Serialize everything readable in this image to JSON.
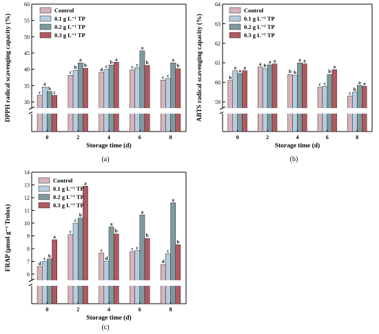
{
  "colors": [
    "#D6B4B9",
    "#B6CDE0",
    "#7F9A9E",
    "#B05A60"
  ],
  "legend": [
    "Control",
    "0.1 g L⁻¹ TP",
    "0.2 g L⁻¹ TP",
    "0.3 g L⁻¹ TP"
  ],
  "chart_data": [
    {
      "type": "bar",
      "panel_label": "(a)",
      "ylabel": "DPPH radical scavenging capacity (%)",
      "xlabel": "Storage time (d)",
      "categories": [
        "0",
        "2",
        "4",
        "6",
        "8"
      ],
      "ylim": [
        25,
        60
      ],
      "yticks": [
        30,
        35,
        40,
        45,
        50,
        55,
        60
      ],
      "axis_break": true,
      "series": [
        {
          "name": "Control",
          "values": [
            32.0,
            38.2,
            39.0,
            39.8,
            36.7
          ],
          "labels": [
            "c",
            "c",
            "d",
            "c",
            "c"
          ]
        },
        {
          "name": "0.1 g L⁻¹ TP",
          "values": [
            34.6,
            39.7,
            40.0,
            40.5,
            37.2
          ],
          "labels": [
            "a",
            "b",
            "c",
            "c",
            "c"
          ]
        },
        {
          "name": "0.2 g L⁻¹ TP",
          "values": [
            33.2,
            42.0,
            41.3,
            45.7,
            42.0
          ],
          "labels": [
            "b",
            "a",
            "b",
            "a",
            "a"
          ]
        },
        {
          "name": "0.3 g L⁻¹ TP",
          "values": [
            32.0,
            40.3,
            42.2,
            41.2,
            40.2
          ],
          "labels": [
            "c",
            "b",
            "a",
            "b",
            "b"
          ]
        }
      ]
    },
    {
      "type": "bar",
      "panel_label": "(b)",
      "ylabel": "ABTS radical scavenging capacity (%)",
      "xlabel": "Storage time (d)",
      "categories": [
        "0",
        "2",
        "4",
        "6",
        "8"
      ],
      "ylim": [
        58,
        64
      ],
      "yticks": [
        59,
        60,
        61,
        62,
        63,
        64
      ],
      "axis_break": true,
      "series": [
        {
          "name": "Control",
          "values": [
            60.1,
            60.8,
            60.4,
            59.75,
            59.3
          ],
          "labels": [
            "b",
            "a",
            "b",
            "c",
            "c"
          ]
        },
        {
          "name": "0.1 g L⁻¹ TP",
          "values": [
            60.6,
            60.7,
            60.35,
            59.8,
            59.5
          ],
          "labels": [
            "a",
            "b",
            "b",
            "c",
            "b"
          ]
        },
        {
          "name": "0.2 g L⁻¹ TP",
          "values": [
            60.45,
            60.9,
            61.0,
            60.4,
            59.85
          ],
          "labels": [
            "a",
            "a",
            "a",
            "b",
            "a"
          ]
        },
        {
          "name": "0.3 g L⁻¹ TP",
          "values": [
            60.6,
            60.95,
            60.95,
            60.65,
            59.8
          ],
          "labels": [
            "a",
            "a",
            "a",
            "a",
            "a"
          ]
        }
      ]
    },
    {
      "type": "bar",
      "panel_label": "(c)",
      "ylabel": "FRAP (μmol g⁻¹ Trolox)",
      "xlabel": "Storage time (d)",
      "categories": [
        "0",
        "2",
        "4",
        "6",
        "8"
      ],
      "ylim": [
        5,
        14
      ],
      "yticks": [
        6,
        7,
        8,
        9,
        10,
        11,
        12,
        13,
        14
      ],
      "axis_break": true,
      "series": [
        {
          "name": "Control",
          "values": [
            6.6,
            9.1,
            7.65,
            7.75,
            6.75
          ],
          "labels": [
            "d",
            "c",
            "c",
            "c",
            "d"
          ]
        },
        {
          "name": "0.1 g L⁻¹ TP",
          "values": [
            7.0,
            10.0,
            7.0,
            7.85,
            7.6
          ],
          "labels": [
            "c",
            "c",
            "d",
            "c",
            "c"
          ]
        },
        {
          "name": "0.2 g L⁻¹ TP",
          "values": [
            7.2,
            10.4,
            9.7,
            10.65,
            11.6
          ],
          "labels": [
            "b",
            "b",
            "a",
            "a",
            "a"
          ]
        },
        {
          "name": "0.3 g L⁻¹ TP",
          "values": [
            8.7,
            12.9,
            9.15,
            8.8,
            8.3
          ],
          "labels": [
            "a",
            "a",
            "b",
            "b",
            "b"
          ]
        }
      ]
    }
  ]
}
